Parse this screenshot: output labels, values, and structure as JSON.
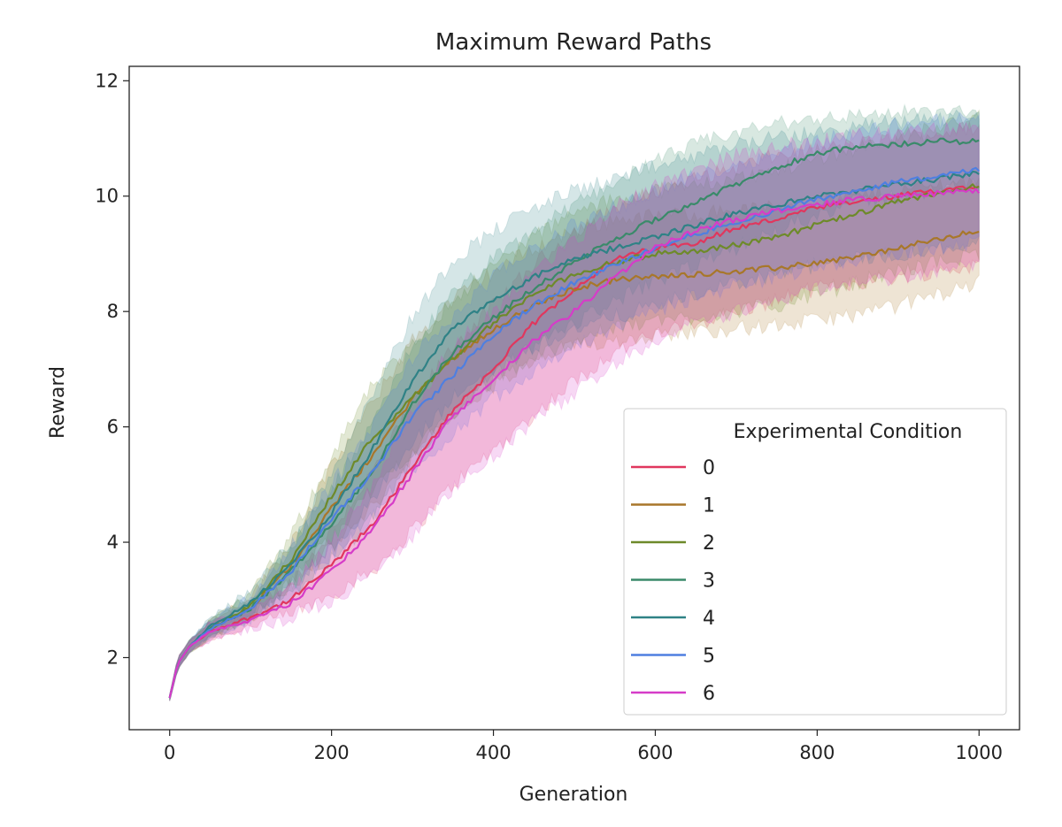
{
  "chart_data": {
    "type": "line",
    "title": "Maximum Reward Paths",
    "xlabel": "Generation",
    "ylabel": "Reward",
    "xlim": [
      -50,
      1050
    ],
    "ylim": [
      0.75,
      12.25
    ],
    "xticks": [
      0,
      200,
      400,
      600,
      800,
      1000
    ],
    "yticks": [
      2,
      4,
      6,
      8,
      10,
      12
    ],
    "grid": false,
    "legend": {
      "title": "Experimental Condition",
      "placement": "lower-right"
    },
    "bands": "shaded variability band around each series",
    "series": [
      {
        "name": "0",
        "color": "#e0375e",
        "x": [
          0,
          10,
          25,
          50,
          100,
          150,
          200,
          250,
          300,
          350,
          400,
          450,
          500,
          550,
          600,
          650,
          700,
          750,
          800,
          850,
          900,
          950,
          1000
        ],
        "y": [
          1.3,
          1.9,
          2.2,
          2.45,
          2.7,
          3.0,
          3.6,
          4.3,
          5.3,
          6.3,
          7.0,
          7.8,
          8.4,
          8.9,
          9.1,
          9.2,
          9.45,
          9.6,
          9.8,
          9.9,
          10.0,
          10.1,
          10.2
        ],
        "lower": [
          1.25,
          1.8,
          2.1,
          2.3,
          2.55,
          2.75,
          3.1,
          3.5,
          4.2,
          5.0,
          5.6,
          6.2,
          6.8,
          7.3,
          7.6,
          7.8,
          8.0,
          8.2,
          8.4,
          8.5,
          8.6,
          8.7,
          8.8
        ],
        "upper": [
          1.35,
          2.0,
          2.3,
          2.6,
          2.85,
          3.3,
          4.2,
          5.2,
          6.4,
          7.4,
          8.1,
          8.8,
          9.4,
          9.8,
          10.1,
          10.3,
          10.5,
          10.7,
          10.8,
          10.9,
          11.0,
          11.1,
          11.2
        ]
      },
      {
        "name": "1",
        "color": "#a8772a",
        "x": [
          0,
          10,
          25,
          50,
          100,
          150,
          200,
          250,
          300,
          350,
          400,
          450,
          500,
          550,
          600,
          650,
          700,
          750,
          800,
          850,
          900,
          950,
          1000
        ],
        "y": [
          1.3,
          1.9,
          2.2,
          2.5,
          2.85,
          3.6,
          4.6,
          5.5,
          6.5,
          7.2,
          7.7,
          8.1,
          8.4,
          8.55,
          8.6,
          8.65,
          8.7,
          8.75,
          8.85,
          8.95,
          9.1,
          9.25,
          9.4
        ],
        "lower": [
          1.25,
          1.8,
          2.1,
          2.35,
          2.65,
          3.2,
          3.9,
          4.6,
          5.5,
          6.2,
          6.7,
          7.1,
          7.4,
          7.5,
          7.6,
          7.65,
          7.7,
          7.75,
          7.85,
          7.95,
          8.1,
          8.3,
          8.5
        ],
        "upper": [
          1.35,
          2.0,
          2.3,
          2.65,
          3.05,
          4.0,
          5.3,
          6.4,
          7.5,
          8.2,
          8.7,
          9.1,
          9.4,
          9.6,
          9.65,
          9.7,
          9.75,
          9.8,
          9.9,
          10.0,
          10.1,
          10.2,
          10.3
        ]
      },
      {
        "name": "2",
        "color": "#6e8a2a",
        "x": [
          0,
          10,
          25,
          50,
          100,
          150,
          200,
          250,
          300,
          350,
          400,
          450,
          500,
          550,
          600,
          650,
          700,
          750,
          800,
          850,
          900,
          950,
          1000
        ],
        "y": [
          1.3,
          1.9,
          2.2,
          2.5,
          2.9,
          3.7,
          4.8,
          5.8,
          6.5,
          7.2,
          7.8,
          8.3,
          8.65,
          8.85,
          9.0,
          9.05,
          9.15,
          9.3,
          9.5,
          9.7,
          9.9,
          10.05,
          10.2
        ],
        "lower": [
          1.25,
          1.8,
          2.1,
          2.35,
          2.7,
          3.3,
          4.1,
          4.9,
          5.6,
          6.2,
          6.8,
          7.2,
          7.5,
          7.7,
          7.85,
          7.9,
          8.0,
          8.1,
          8.3,
          8.5,
          8.7,
          8.85,
          9.0
        ],
        "upper": [
          1.35,
          2.0,
          2.3,
          2.65,
          3.1,
          4.1,
          5.5,
          6.7,
          7.4,
          8.2,
          8.8,
          9.3,
          9.7,
          9.95,
          10.1,
          10.2,
          10.3,
          10.45,
          10.65,
          10.85,
          11.05,
          11.2,
          11.35
        ]
      },
      {
        "name": "3",
        "color": "#3a8a6a",
        "x": [
          0,
          10,
          25,
          50,
          100,
          150,
          200,
          250,
          300,
          350,
          400,
          450,
          500,
          550,
          600,
          650,
          700,
          750,
          800,
          850,
          900,
          950,
          1000
        ],
        "y": [
          1.3,
          1.9,
          2.2,
          2.5,
          2.85,
          3.5,
          4.3,
          5.2,
          6.4,
          7.3,
          7.9,
          8.4,
          8.85,
          9.25,
          9.6,
          9.9,
          10.2,
          10.5,
          10.75,
          10.85,
          10.9,
          10.95,
          10.95
        ],
        "lower": [
          1.25,
          1.8,
          2.1,
          2.35,
          2.65,
          3.1,
          3.7,
          4.4,
          5.4,
          6.3,
          6.9,
          7.4,
          7.8,
          8.2,
          8.5,
          8.8,
          9.1,
          9.4,
          9.7,
          9.9,
          10.0,
          10.1,
          10.2
        ],
        "upper": [
          1.35,
          2.0,
          2.3,
          2.65,
          3.05,
          3.9,
          4.9,
          6.0,
          7.4,
          8.3,
          8.9,
          9.4,
          9.85,
          10.25,
          10.6,
          10.9,
          11.1,
          11.25,
          11.35,
          11.4,
          11.45,
          11.45,
          11.45
        ]
      },
      {
        "name": "4",
        "color": "#2f8286",
        "x": [
          0,
          10,
          25,
          50,
          100,
          150,
          200,
          250,
          300,
          350,
          400,
          450,
          500,
          550,
          600,
          650,
          700,
          750,
          800,
          850,
          900,
          950,
          1000
        ],
        "y": [
          1.3,
          1.9,
          2.2,
          2.55,
          2.95,
          3.6,
          4.5,
          5.6,
          6.8,
          7.7,
          8.2,
          8.6,
          8.9,
          9.1,
          9.3,
          9.5,
          9.7,
          9.85,
          10.0,
          10.1,
          10.2,
          10.3,
          10.4
        ],
        "lower": [
          1.25,
          1.8,
          2.1,
          2.4,
          2.75,
          3.2,
          3.9,
          4.7,
          5.7,
          6.5,
          7.0,
          7.4,
          7.7,
          7.9,
          8.1,
          8.3,
          8.5,
          8.65,
          8.8,
          8.9,
          9.0,
          9.1,
          9.2
        ],
        "upper": [
          1.35,
          2.0,
          2.3,
          2.7,
          3.15,
          4.0,
          5.2,
          6.6,
          7.9,
          8.9,
          9.4,
          9.8,
          10.1,
          10.3,
          10.5,
          10.7,
          10.9,
          11.0,
          11.1,
          11.2,
          11.3,
          11.35,
          11.4
        ]
      },
      {
        "name": "5",
        "color": "#4f7fe0",
        "x": [
          0,
          10,
          25,
          50,
          100,
          150,
          200,
          250,
          300,
          350,
          400,
          450,
          500,
          550,
          600,
          650,
          700,
          750,
          800,
          850,
          900,
          950,
          1000
        ],
        "y": [
          1.3,
          1.9,
          2.2,
          2.5,
          2.85,
          3.5,
          4.4,
          5.2,
          6.2,
          6.9,
          7.6,
          8.1,
          8.5,
          8.8,
          9.1,
          9.35,
          9.55,
          9.75,
          9.95,
          10.1,
          10.25,
          10.35,
          10.45
        ],
        "lower": [
          1.25,
          1.8,
          2.1,
          2.35,
          2.65,
          3.1,
          3.8,
          4.4,
          5.2,
          5.9,
          6.5,
          7.0,
          7.4,
          7.7,
          8.0,
          8.25,
          8.45,
          8.6,
          8.8,
          8.9,
          9.0,
          9.1,
          9.2
        ],
        "upper": [
          1.35,
          2.0,
          2.3,
          2.65,
          3.05,
          3.9,
          5.0,
          6.0,
          7.2,
          7.9,
          8.6,
          9.1,
          9.5,
          9.8,
          10.1,
          10.35,
          10.55,
          10.75,
          10.95,
          11.1,
          11.25,
          11.3,
          11.35
        ]
      },
      {
        "name": "6",
        "color": "#d63cc8",
        "x": [
          0,
          10,
          25,
          50,
          100,
          150,
          200,
          250,
          300,
          350,
          400,
          450,
          500,
          550,
          600,
          650,
          700,
          750,
          800,
          850,
          900,
          950,
          1000
        ],
        "y": [
          1.3,
          1.9,
          2.2,
          2.45,
          2.65,
          2.95,
          3.5,
          4.2,
          5.2,
          6.2,
          6.8,
          7.5,
          8.0,
          8.6,
          9.1,
          9.4,
          9.6,
          9.75,
          9.85,
          9.95,
          10.0,
          10.05,
          10.1
        ],
        "lower": [
          1.25,
          1.8,
          2.1,
          2.3,
          2.5,
          2.7,
          3.0,
          3.4,
          4.1,
          4.9,
          5.5,
          6.1,
          6.6,
          7.1,
          7.5,
          7.8,
          8.0,
          8.2,
          8.4,
          8.5,
          8.6,
          8.7,
          8.8
        ],
        "upper": [
          1.35,
          2.0,
          2.3,
          2.6,
          2.8,
          3.2,
          4.0,
          5.0,
          6.3,
          7.4,
          8.0,
          8.7,
          9.2,
          9.8,
          10.2,
          10.5,
          10.7,
          10.85,
          10.95,
          11.05,
          11.1,
          11.15,
          11.2
        ]
      }
    ]
  }
}
